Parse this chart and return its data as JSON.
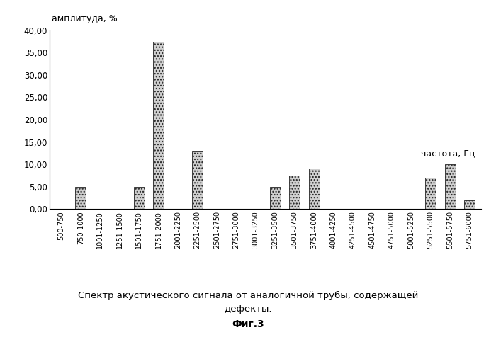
{
  "categories": [
    "500-750",
    "750-1000",
    "1001-1250",
    "1251-1500",
    "1501-1750",
    "1751-2000",
    "2001-2250",
    "2251-2500",
    "2501-2750",
    "2751-3000",
    "3001-3250",
    "3251-3500",
    "3501-3750",
    "3751-4000",
    "4001-4250",
    "4251-4500",
    "4501-4750",
    "4751-5000",
    "5001-5250",
    "5251-5500",
    "5501-5750",
    "5751-6000"
  ],
  "values": [
    0.0,
    5.0,
    0.0,
    0.0,
    5.0,
    37.5,
    0.0,
    13.0,
    0.0,
    0.0,
    0.0,
    5.0,
    7.5,
    9.0,
    0.0,
    0.0,
    0.0,
    0.0,
    0.0,
    7.0,
    10.0,
    2.0
  ],
  "ylim": [
    0,
    40
  ],
  "yticks": [
    0.0,
    5.0,
    10.0,
    15.0,
    20.0,
    25.0,
    30.0,
    35.0,
    40.0
  ],
  "ytick_labels": [
    "0,00",
    "5,00",
    "10,00",
    "15,00",
    "20,00",
    "25,00",
    "30,00",
    "35,00",
    "40,00"
  ],
  "ylabel": "амплитуда, %",
  "xlabel_annotation": "частота, Гц",
  "bar_color": "#d0d0d0",
  "bar_edge_color": "#222222",
  "hatch": "....",
  "title_line1": "Спектр акустического сигнала от аналогичной трубы, содержащей",
  "title_line2": "дефекты.",
  "fig_label": "Фиг.3",
  "background_color": "#ffffff"
}
